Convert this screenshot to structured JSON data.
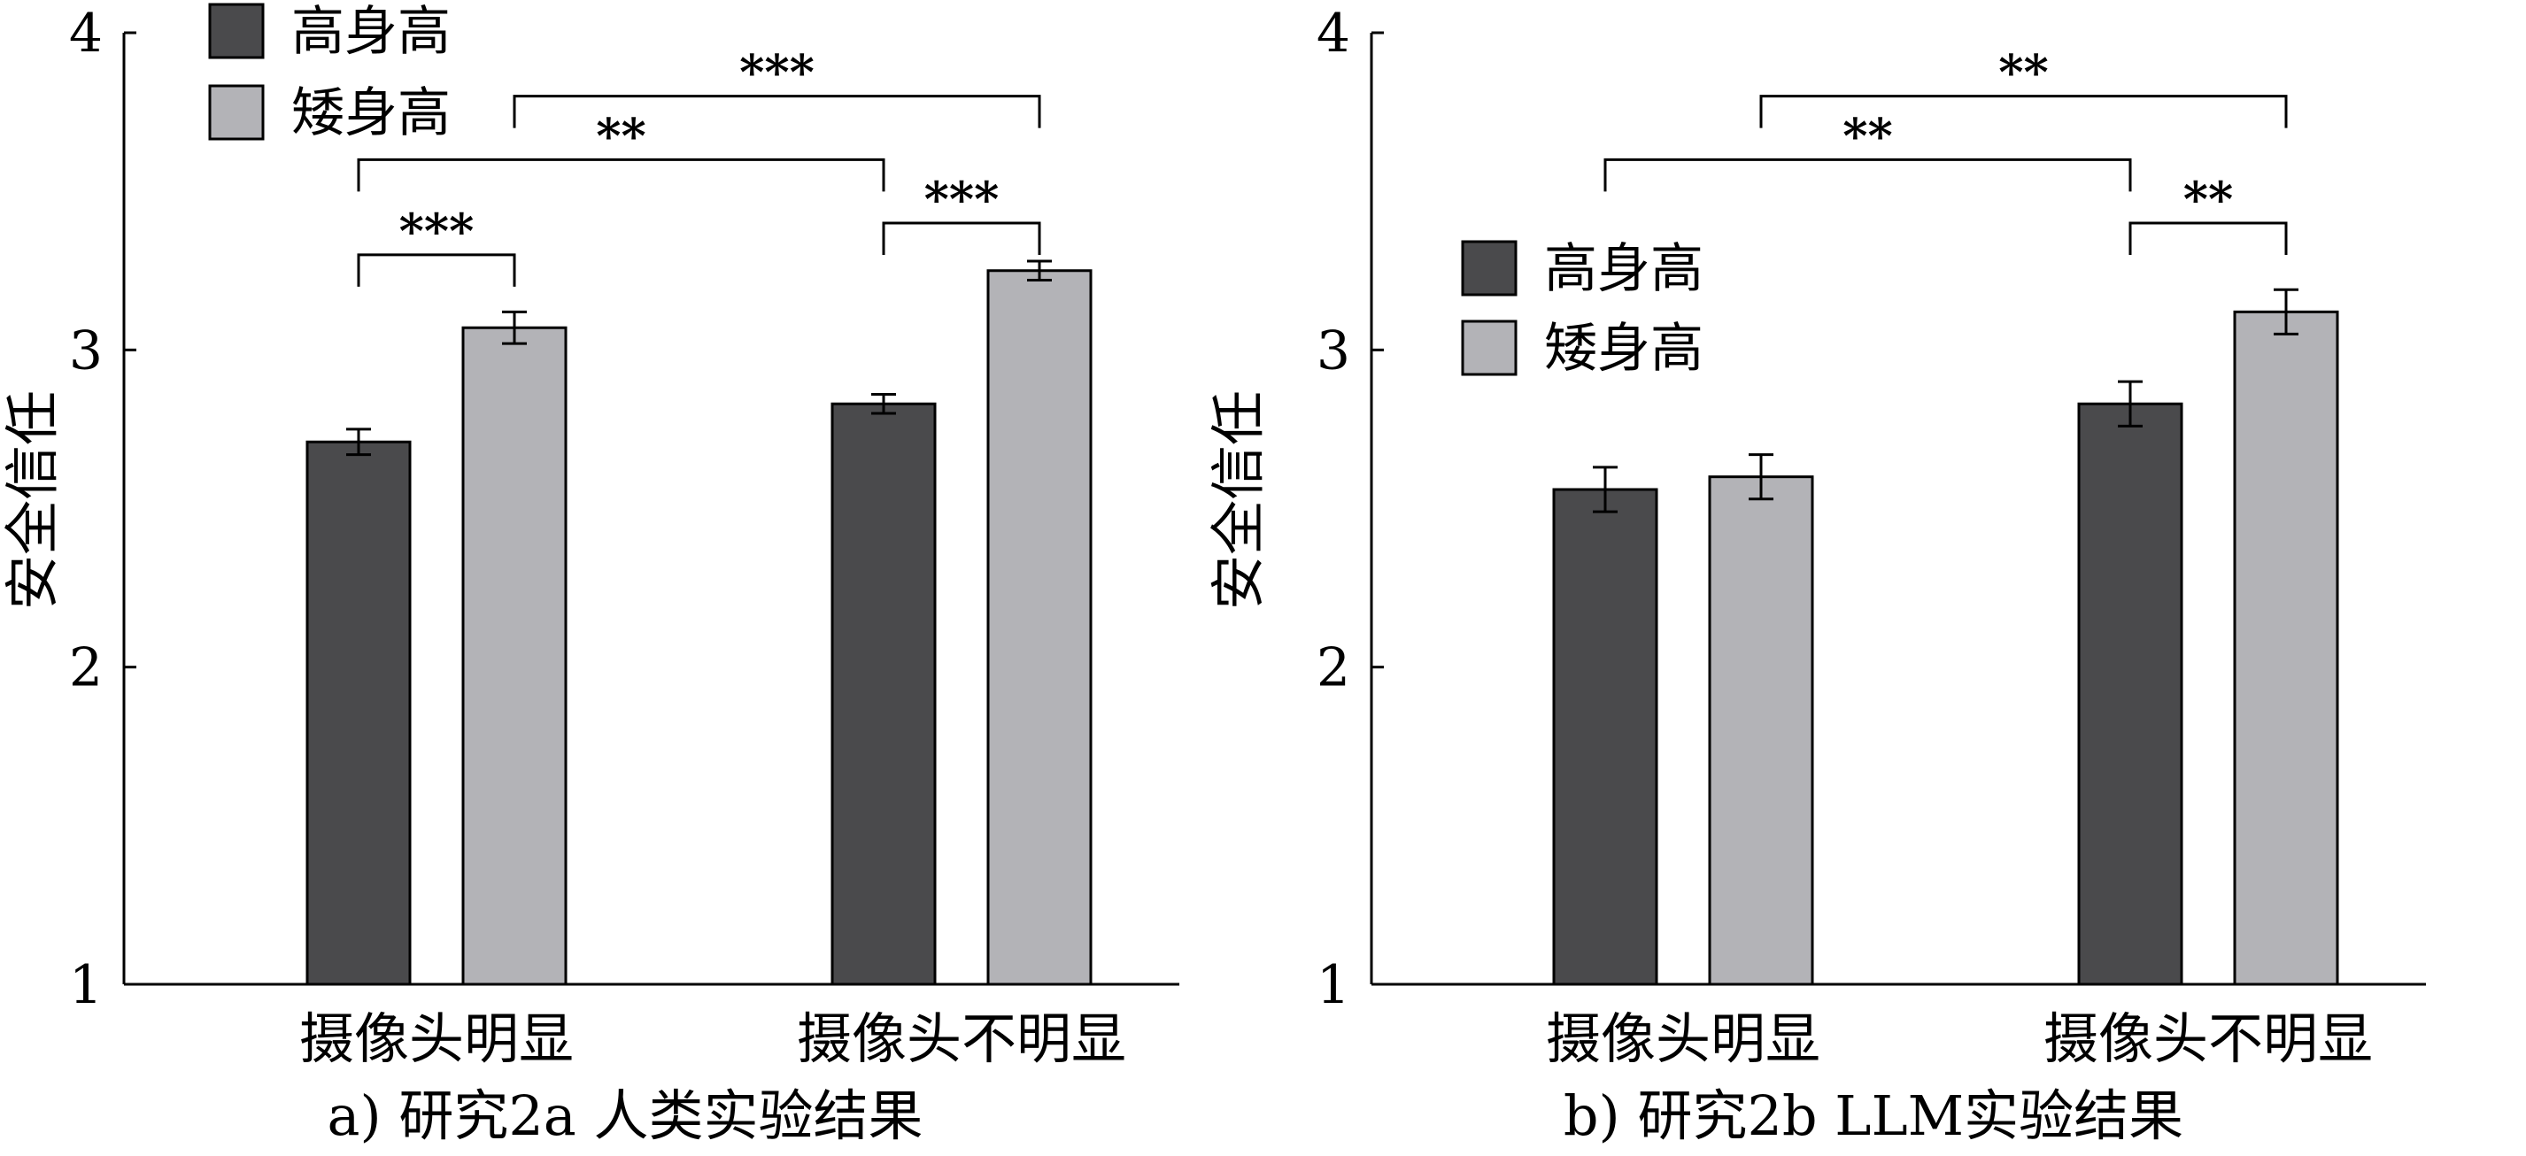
{
  "colors": {
    "tall": "#4a4a4c",
    "short": "#b3b3b7",
    "axis": "#000000"
  },
  "chart_data": [
    {
      "type": "bar",
      "caption": "a) 研究2a 人类实验结果",
      "ylabel": "安全信任",
      "xlabel": "",
      "ylim": [
        1,
        4
      ],
      "yticks": [
        "1",
        "2",
        "3",
        "4"
      ],
      "categories": [
        "摄像头明显",
        "摄像头不明显"
      ],
      "legend_position": "top-left",
      "series": [
        {
          "name": "高身高",
          "values": [
            2.71,
            2.83
          ],
          "errors": [
            0.04,
            0.03
          ]
        },
        {
          "name": "矮身高",
          "values": [
            3.07,
            3.25
          ],
          "errors": [
            0.05,
            0.03
          ]
        }
      ],
      "significance": [
        {
          "label": "***",
          "from": [
            0,
            0
          ],
          "to": [
            0,
            1
          ],
          "level": 3.3
        },
        {
          "label": "***",
          "from": [
            1,
            0
          ],
          "to": [
            1,
            1
          ],
          "level": 3.4
        },
        {
          "label": "**",
          "from": [
            0,
            0
          ],
          "to": [
            1,
            0
          ],
          "level": 3.6
        },
        {
          "label": "***",
          "from": [
            0,
            1
          ],
          "to": [
            1,
            1
          ],
          "level": 3.8
        }
      ]
    },
    {
      "type": "bar",
      "caption": "b) 研究2b LLM实验结果",
      "ylabel": "安全信任",
      "xlabel": "",
      "ylim": [
        1,
        4
      ],
      "yticks": [
        "1",
        "2",
        "3",
        "4"
      ],
      "categories": [
        "摄像头明显",
        "摄像头不明显"
      ],
      "legend_position": "upper-left",
      "series": [
        {
          "name": "高身高",
          "values": [
            2.56,
            2.83
          ],
          "errors": [
            0.07,
            0.07
          ]
        },
        {
          "name": "矮身高",
          "values": [
            2.6,
            3.12
          ],
          "errors": [
            0.07,
            0.07
          ]
        }
      ],
      "significance": [
        {
          "label": "**",
          "from": [
            1,
            0
          ],
          "to": [
            1,
            1
          ],
          "level": 3.4
        },
        {
          "label": "**",
          "from": [
            0,
            0
          ],
          "to": [
            1,
            0
          ],
          "level": 3.6
        },
        {
          "label": "**",
          "from": [
            0,
            1
          ],
          "to": [
            1,
            1
          ],
          "level": 3.8
        }
      ]
    }
  ]
}
